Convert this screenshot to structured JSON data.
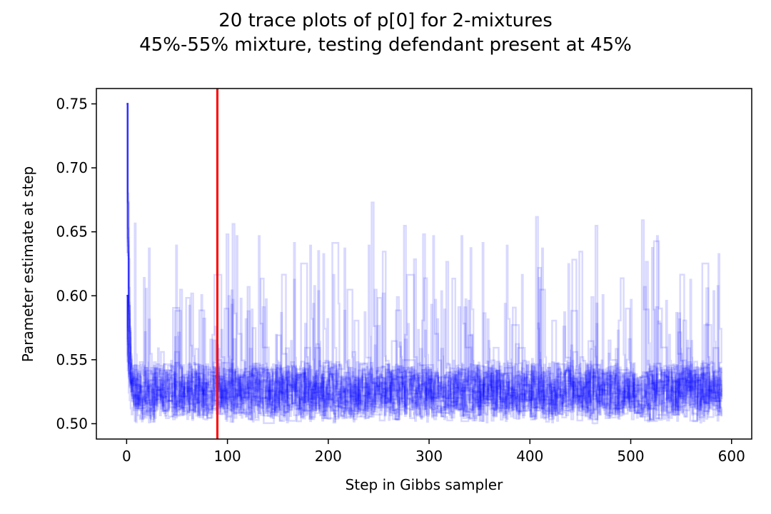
{
  "chart_data": {
    "type": "line",
    "title_lines": [
      "20 trace plots of p[0] for 2-mixtures",
      "45%-55% mixture, testing defendant present at 45%"
    ],
    "xlabel": "Step in Gibbs sampler",
    "ylabel": "Parameter estimate at step",
    "xlim": [
      -30,
      620
    ],
    "ylim": [
      0.488,
      0.762
    ],
    "xticks": [
      0,
      100,
      200,
      300,
      400,
      500,
      600
    ],
    "yticks": [
      0.5,
      0.55,
      0.6,
      0.65,
      0.7,
      0.75
    ],
    "ytick_labels": [
      "0.50",
      "0.55",
      "0.60",
      "0.65",
      "0.70",
      "0.75"
    ],
    "grid": false,
    "series_count": 20,
    "steps": 591,
    "series_color": "#0000ff",
    "series_alpha": 0.15,
    "initial_values": [
      0.75,
      0.75,
      0.75,
      0.75,
      0.75,
      0.75,
      0.75,
      0.75,
      0.75,
      0.75,
      0.6,
      0.6,
      0.6,
      0.6,
      0.6,
      0.6,
      0.6,
      0.6,
      0.6,
      0.6
    ],
    "stationary_range": [
      0.5,
      0.68
    ],
    "typical_level": 0.525,
    "burn_in_line": {
      "x": 90,
      "color": "#ff0000"
    }
  }
}
